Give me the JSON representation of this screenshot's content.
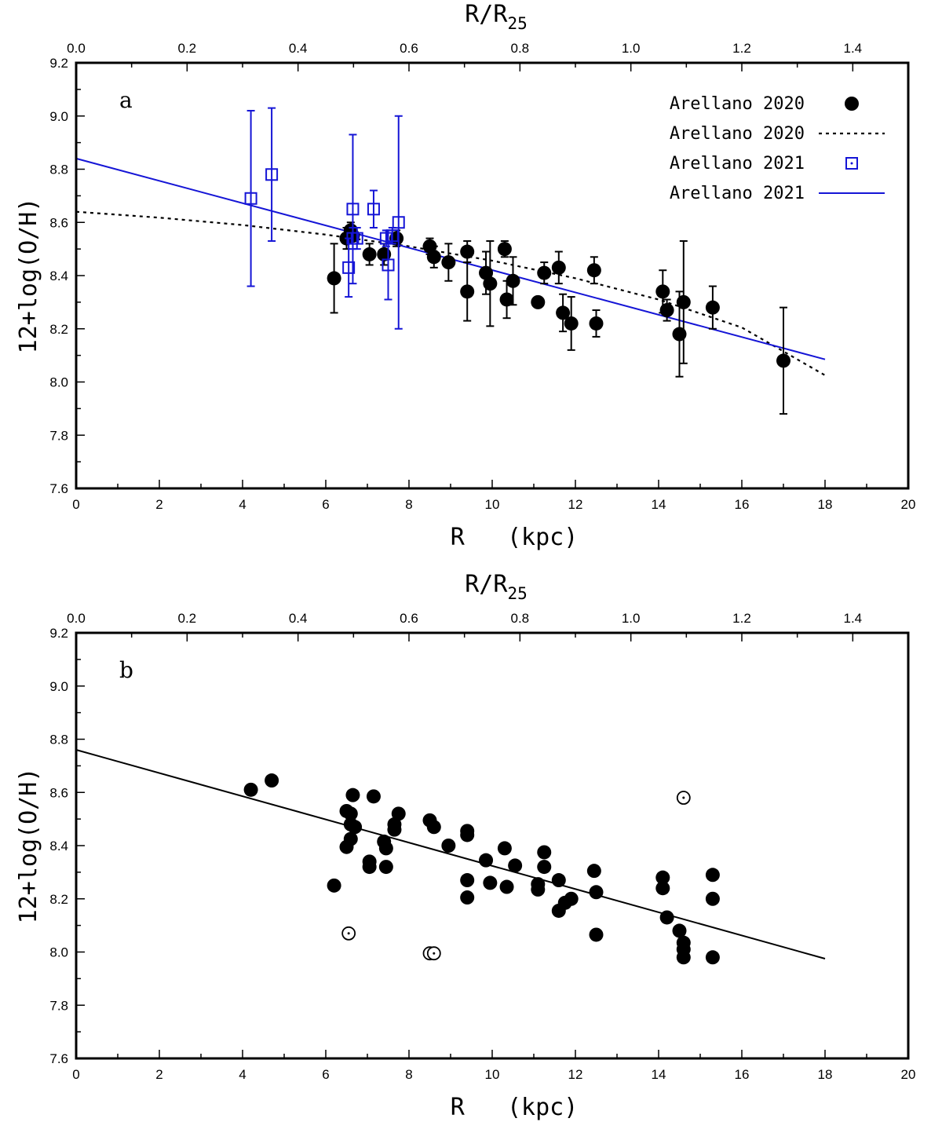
{
  "colors": {
    "black": "#000000",
    "blue": "#1515d6"
  },
  "chart_data": [
    {
      "type": "scatter",
      "panel_label": "a",
      "xlabel": "R   (kpc)",
      "ylabel": "12+log(O/H)",
      "x2label_main": "R/R",
      "x2label_sub": "25",
      "xlim": [
        0,
        20
      ],
      "ylim": [
        7.6,
        9.2
      ],
      "x2lim": [
        0,
        1.5
      ],
      "xticks": [
        0,
        2,
        4,
        6,
        8,
        10,
        12,
        14,
        16,
        18,
        20
      ],
      "xtick_labels": [
        "0",
        "2",
        "4",
        "6",
        "8",
        "10",
        "12",
        "14",
        "16",
        "18",
        "20"
      ],
      "yticks": [
        7.6,
        7.8,
        8.0,
        8.2,
        8.4,
        8.6,
        8.8,
        9.0,
        9.2
      ],
      "ytick_labels": [
        "7.6",
        "7.8",
        "8.0",
        "8.2",
        "8.4",
        "8.6",
        "8.8",
        "9.0",
        "9.2"
      ],
      "x2ticks": [
        0,
        0.2,
        0.4,
        0.6,
        0.8,
        1.0,
        1.2,
        1.4
      ],
      "x2tick_labels": [
        "0.0",
        "0.2",
        "0.4",
        "0.6",
        "0.8",
        "1.0",
        "1.2",
        "1.4"
      ],
      "legend": [
        {
          "label": "Arellano 2020",
          "marker": "filled-circle",
          "color": "#000000"
        },
        {
          "label": "Arellano 2020",
          "marker": "dotted-line",
          "color": "#000000"
        },
        {
          "label": "Arellano 2021",
          "marker": "open-square",
          "color": "#1515d6"
        },
        {
          "label": "Arellano 2021",
          "marker": "solid-line",
          "color": "#1515d6"
        }
      ],
      "legend_placement": "top-right",
      "series": [
        {
          "name": "Arellano 2020",
          "marker": "filled-circle",
          "color": "#000000",
          "points": [
            {
              "x": 6.2,
              "y": 8.39,
              "err": 0.13
            },
            {
              "x": 6.5,
              "y": 8.54,
              "err": 0.04
            },
            {
              "x": 6.6,
              "y": 8.57,
              "err": 0.03
            },
            {
              "x": 6.65,
              "y": 8.55,
              "err": 0.02
            },
            {
              "x": 7.05,
              "y": 8.48,
              "err": 0.04
            },
            {
              "x": 7.4,
              "y": 8.48,
              "err": 0.04
            },
            {
              "x": 7.7,
              "y": 8.54,
              "err": 0.03
            },
            {
              "x": 8.5,
              "y": 8.51,
              "err": 0.03
            },
            {
              "x": 8.6,
              "y": 8.47,
              "err": 0.04
            },
            {
              "x": 8.95,
              "y": 8.45,
              "err": 0.07
            },
            {
              "x": 9.4,
              "y": 8.49,
              "err": 0.04
            },
            {
              "x": 9.4,
              "y": 8.34,
              "err": 0.11
            },
            {
              "x": 9.85,
              "y": 8.41,
              "err": 0.08
            },
            {
              "x": 9.95,
              "y": 8.37,
              "err": 0.16
            },
            {
              "x": 10.3,
              "y": 8.5,
              "err": 0.03
            },
            {
              "x": 10.35,
              "y": 8.31,
              "err": 0.07
            },
            {
              "x": 10.5,
              "y": 8.38,
              "err": 0.09
            },
            {
              "x": 11.1,
              "y": 8.3,
              "err": 0.0
            },
            {
              "x": 11.25,
              "y": 8.41,
              "err": 0.04
            },
            {
              "x": 11.6,
              "y": 8.43,
              "err": 0.06
            },
            {
              "x": 11.7,
              "y": 8.26,
              "err": 0.07
            },
            {
              "x": 11.9,
              "y": 8.22,
              "err": 0.1
            },
            {
              "x": 12.45,
              "y": 8.42,
              "err": 0.05
            },
            {
              "x": 12.5,
              "y": 8.22,
              "err": 0.05
            },
            {
              "x": 14.1,
              "y": 8.34,
              "err": 0.08
            },
            {
              "x": 14.2,
              "y": 8.27,
              "err": 0.04
            },
            {
              "x": 14.5,
              "y": 8.18,
              "err": 0.16
            },
            {
              "x": 14.6,
              "y": 8.3,
              "err": 0.23
            },
            {
              "x": 15.3,
              "y": 8.28,
              "err": 0.08
            },
            {
              "x": 17.0,
              "y": 8.08,
              "err": 0.2
            }
          ]
        },
        {
          "name": "Arellano 2021",
          "marker": "open-square",
          "color": "#1515d6",
          "points": [
            {
              "x": 4.2,
              "y": 8.69,
              "err": 0.33
            },
            {
              "x": 4.7,
              "y": 8.78,
              "err": 0.25
            },
            {
              "x": 6.55,
              "y": 8.43,
              "err": 0.11
            },
            {
              "x": 6.65,
              "y": 8.65,
              "err": 0.28
            },
            {
              "x": 6.65,
              "y": 8.54,
              "err": 0.04
            },
            {
              "x": 6.75,
              "y": 8.54,
              "err": 0.04
            },
            {
              "x": 7.15,
              "y": 8.65,
              "err": 0.07
            },
            {
              "x": 7.45,
              "y": 8.54,
              "err": 0.03
            },
            {
              "x": 7.5,
              "y": 8.44,
              "err": 0.13
            },
            {
              "x": 7.6,
              "y": 8.55,
              "err": 0.03
            },
            {
              "x": 7.75,
              "y": 8.6,
              "err": 0.4
            }
          ]
        }
      ],
      "lines": [
        {
          "name": "Arellano 2020",
          "style": "dotted",
          "color": "#000000",
          "x": [
            0,
            2,
            4,
            6,
            8,
            10,
            12,
            14,
            16,
            18
          ],
          "y": [
            8.64,
            8.618,
            8.59,
            8.554,
            8.51,
            8.456,
            8.39,
            8.31,
            8.205,
            8.025
          ]
        },
        {
          "name": "Arellano 2021",
          "style": "solid",
          "color": "#1515d6",
          "x": [
            0,
            18
          ],
          "y": [
            8.84,
            8.085
          ]
        }
      ]
    },
    {
      "type": "scatter",
      "panel_label": "b",
      "xlabel": "R   (kpc)",
      "ylabel": "12+log(O/H)",
      "x2label_main": "R/R",
      "x2label_sub": "25",
      "xlim": [
        0,
        20
      ],
      "ylim": [
        7.6,
        9.2
      ],
      "x2lim": [
        0,
        1.5
      ],
      "xticks": [
        0,
        2,
        4,
        6,
        8,
        10,
        12,
        14,
        16,
        18,
        20
      ],
      "xtick_labels": [
        "0",
        "2",
        "4",
        "6",
        "8",
        "10",
        "12",
        "14",
        "16",
        "18",
        "20"
      ],
      "yticks": [
        7.6,
        7.8,
        8.0,
        8.2,
        8.4,
        8.6,
        8.8,
        9.0,
        9.2
      ],
      "ytick_labels": [
        "7.6",
        "7.8",
        "8.0",
        "8.2",
        "8.4",
        "8.6",
        "8.8",
        "9.0",
        "9.2"
      ],
      "x2ticks": [
        0,
        0.2,
        0.4,
        0.6,
        0.8,
        1.0,
        1.2,
        1.4
      ],
      "x2tick_labels": [
        "0.0",
        "0.2",
        "0.4",
        "0.6",
        "0.8",
        "1.0",
        "1.2",
        "1.4"
      ],
      "series": [
        {
          "marker": "filled-circle",
          "color": "#000000",
          "points": [
            {
              "x": 4.2,
              "y": 8.61
            },
            {
              "x": 4.7,
              "y": 8.645
            },
            {
              "x": 6.2,
              "y": 8.25
            },
            {
              "x": 6.5,
              "y": 8.53
            },
            {
              "x": 6.5,
              "y": 8.395
            },
            {
              "x": 6.6,
              "y": 8.52
            },
            {
              "x": 6.6,
              "y": 8.48
            },
            {
              "x": 6.6,
              "y": 8.425
            },
            {
              "x": 6.65,
              "y": 8.59
            },
            {
              "x": 6.7,
              "y": 8.47
            },
            {
              "x": 7.05,
              "y": 8.34
            },
            {
              "x": 7.05,
              "y": 8.32
            },
            {
              "x": 7.15,
              "y": 8.585
            },
            {
              "x": 7.4,
              "y": 8.415
            },
            {
              "x": 7.45,
              "y": 8.39
            },
            {
              "x": 7.45,
              "y": 8.32
            },
            {
              "x": 7.65,
              "y": 8.48
            },
            {
              "x": 7.65,
              "y": 8.46
            },
            {
              "x": 7.75,
              "y": 8.52
            },
            {
              "x": 8.5,
              "y": 8.495
            },
            {
              "x": 8.6,
              "y": 8.47
            },
            {
              "x": 8.95,
              "y": 8.4
            },
            {
              "x": 9.4,
              "y": 8.455
            },
            {
              "x": 9.4,
              "y": 8.44
            },
            {
              "x": 9.4,
              "y": 8.27
            },
            {
              "x": 9.4,
              "y": 8.205
            },
            {
              "x": 9.85,
              "y": 8.345
            },
            {
              "x": 9.95,
              "y": 8.26
            },
            {
              "x": 10.3,
              "y": 8.39
            },
            {
              "x": 10.35,
              "y": 8.245
            },
            {
              "x": 10.55,
              "y": 8.325
            },
            {
              "x": 11.1,
              "y": 8.255
            },
            {
              "x": 11.1,
              "y": 8.235
            },
            {
              "x": 11.25,
              "y": 8.375
            },
            {
              "x": 11.25,
              "y": 8.32
            },
            {
              "x": 11.6,
              "y": 8.27
            },
            {
              "x": 11.6,
              "y": 8.155
            },
            {
              "x": 11.75,
              "y": 8.185
            },
            {
              "x": 11.9,
              "y": 8.2
            },
            {
              "x": 12.45,
              "y": 8.305
            },
            {
              "x": 12.5,
              "y": 8.225
            },
            {
              "x": 12.5,
              "y": 8.065
            },
            {
              "x": 14.1,
              "y": 8.28
            },
            {
              "x": 14.1,
              "y": 8.24
            },
            {
              "x": 14.2,
              "y": 8.13
            },
            {
              "x": 14.5,
              "y": 8.08
            },
            {
              "x": 14.6,
              "y": 8.035
            },
            {
              "x": 14.6,
              "y": 8.01
            },
            {
              "x": 14.6,
              "y": 7.98
            },
            {
              "x": 15.3,
              "y": 8.29
            },
            {
              "x": 15.3,
              "y": 8.2
            },
            {
              "x": 15.3,
              "y": 7.98
            }
          ]
        },
        {
          "marker": "open-circle-dot",
          "color": "#000000",
          "points": [
            {
              "x": 6.55,
              "y": 8.07
            },
            {
              "x": 8.5,
              "y": 7.995
            },
            {
              "x": 8.6,
              "y": 7.995
            },
            {
              "x": 14.6,
              "y": 8.58
            }
          ]
        }
      ],
      "lines": [
        {
          "style": "solid",
          "color": "#000000",
          "x": [
            0,
            18
          ],
          "y": [
            8.76,
            7.975
          ]
        }
      ]
    }
  ]
}
